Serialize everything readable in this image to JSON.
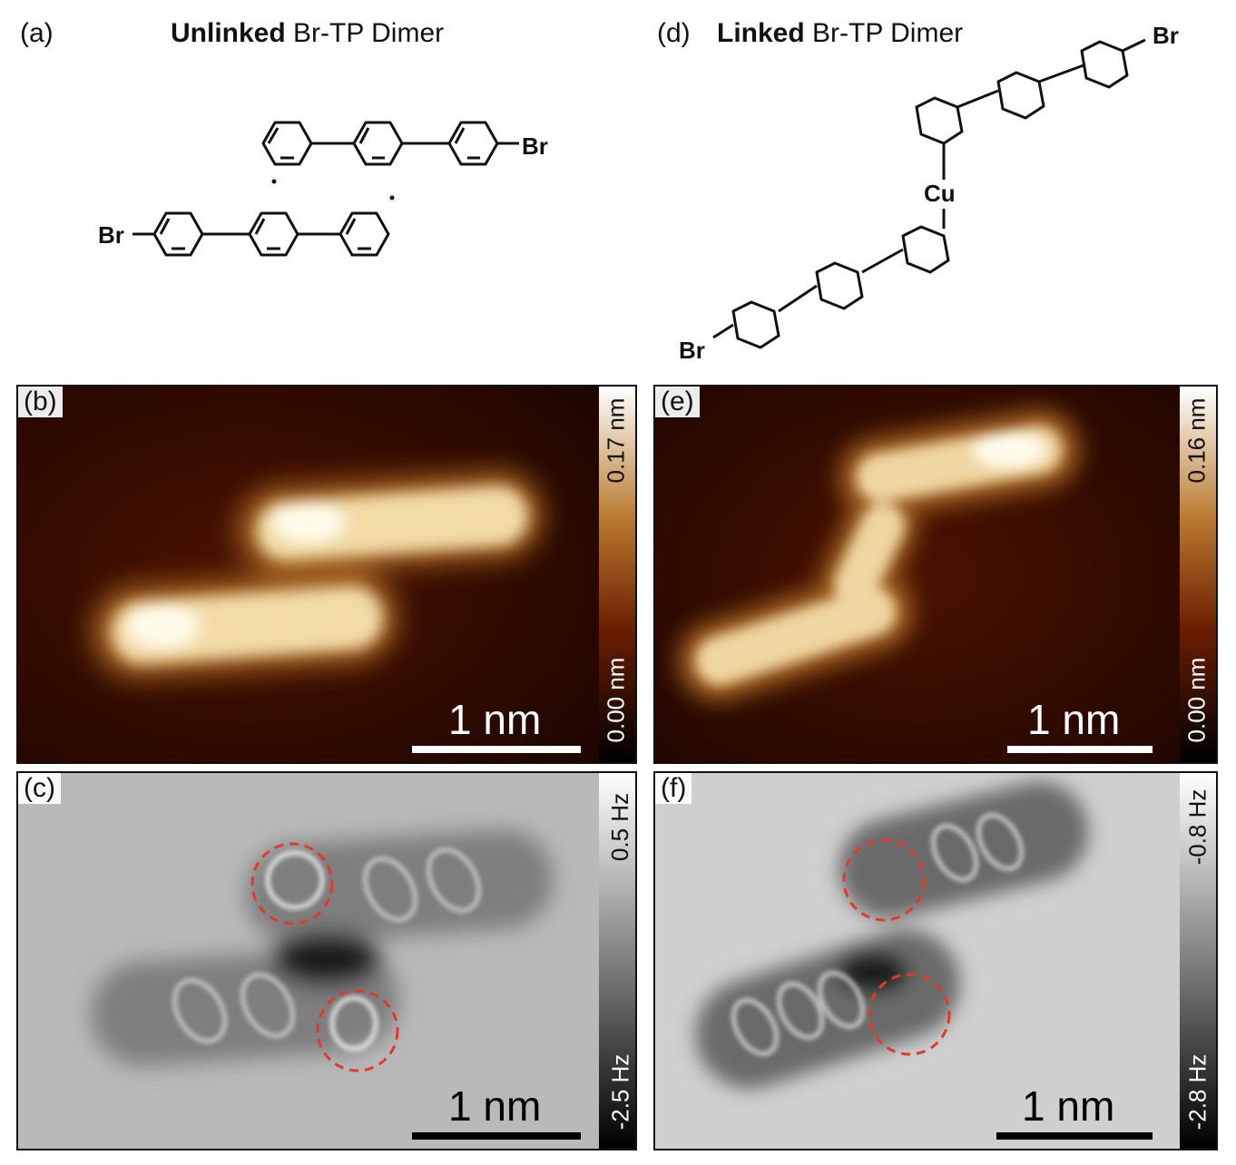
{
  "panel_a": {
    "label": "(a)",
    "title_bold": "Unlinked",
    "title_rest": " Br-TP Dimer",
    "atoms": [
      "Br",
      "Br"
    ]
  },
  "panel_d": {
    "label": "(d)",
    "title_bold": "Linked",
    "title_rest": " Br-TP Dimer",
    "atoms": [
      "Br",
      "Br",
      "Cu"
    ]
  },
  "panel_b": {
    "label": "(b)",
    "cbar_max": "0.17 nm",
    "cbar_min": "0.00 nm",
    "scalebar": "1 nm"
  },
  "panel_e": {
    "label": "(e)",
    "cbar_max": "0.16 nm",
    "cbar_min": "0.00 nm",
    "scalebar": "1 nm"
  },
  "panel_c": {
    "label": "(c)",
    "cbar_max": "0.5 Hz",
    "cbar_min": "-2.5 Hz",
    "scalebar": "1 nm"
  },
  "panel_f": {
    "label": "(f)",
    "cbar_max": "-0.8 Hz",
    "cbar_min": "-2.8 Hz",
    "scalebar": "1 nm"
  },
  "colors": {
    "stm_dark": "#2a0800",
    "stm_mid": "#b0722c",
    "stm_bright": "#fffbe8",
    "afm_bg": "#b8b8b8",
    "circle": "#e03a2a"
  }
}
